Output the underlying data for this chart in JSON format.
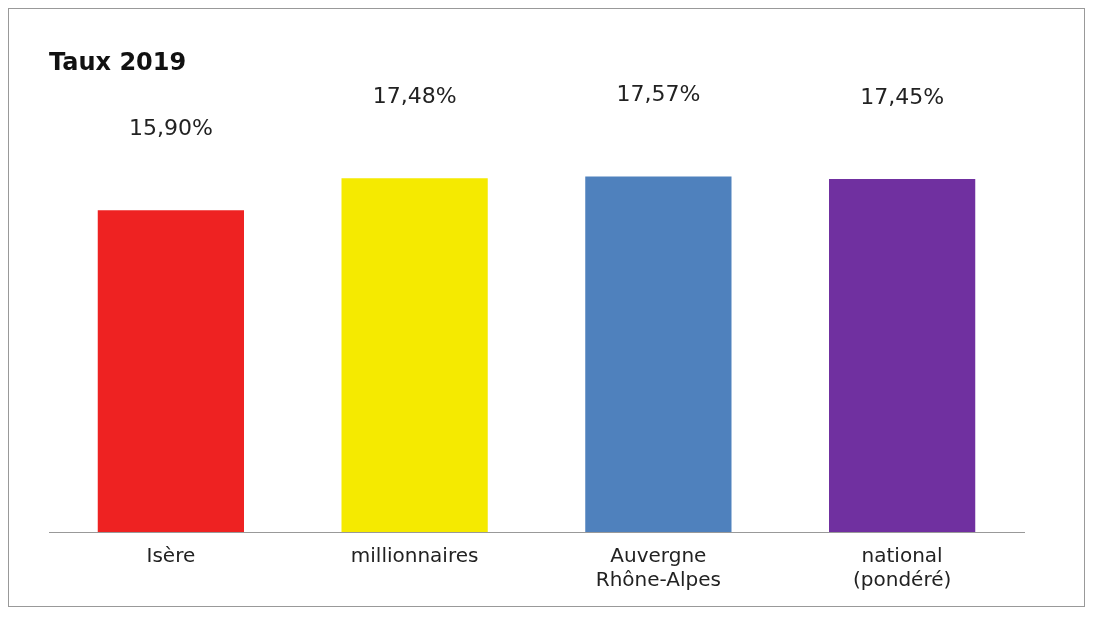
{
  "chart_data": {
    "type": "bar",
    "title": "Taux 2019",
    "categories": [
      "Isère",
      "millionnaires",
      "Auvergne\nRhône-Alpes",
      "national\n(pondéré)"
    ],
    "values": [
      15.9,
      17.48,
      17.57,
      17.45
    ],
    "colors": [
      "#ee2222",
      "#f5ea00",
      "#4f81bd",
      "#7030a0"
    ],
    "value_labels": [
      "15,90%",
      "17,48%",
      "17,57%",
      "17,45%"
    ],
    "grid": false,
    "legend": false
  }
}
